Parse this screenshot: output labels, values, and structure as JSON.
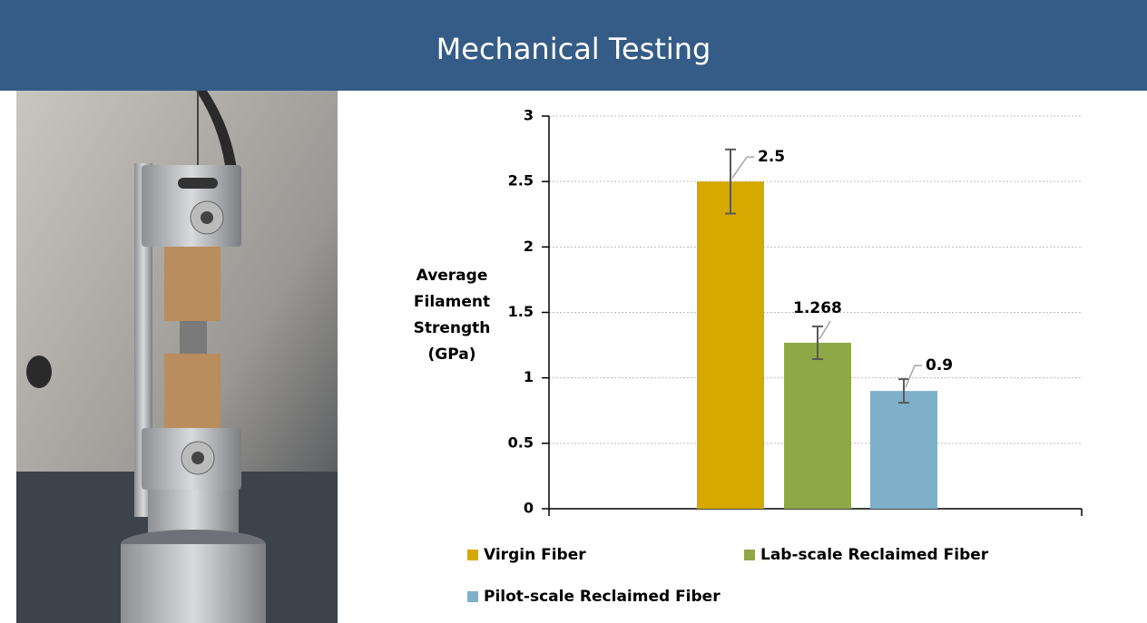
{
  "header": {
    "title": "Mechanical Testing"
  },
  "chart_data": {
    "type": "bar",
    "y_label": "Average Filament Strength (GPa)",
    "categories": [
      null
    ],
    "series": [
      {
        "name": "Virgin Fiber",
        "color": "#d6a900",
        "values": [
          2.5
        ],
        "errors": [
          0.245
        ]
      },
      {
        "name": "Lab-scale Reclaimed Fiber",
        "color": "#8ea848",
        "values": [
          1.268
        ],
        "errors": [
          0.125
        ]
      },
      {
        "name": "Pilot-scale Reclaimed Fiber",
        "color": "#7fb0c9",
        "values": [
          0.9
        ],
        "errors": [
          0.09
        ]
      }
    ],
    "ylim": [
      0,
      3
    ],
    "yticks": [
      0,
      0.5,
      1,
      1.5,
      2,
      2.5,
      3
    ],
    "grid": true
  }
}
